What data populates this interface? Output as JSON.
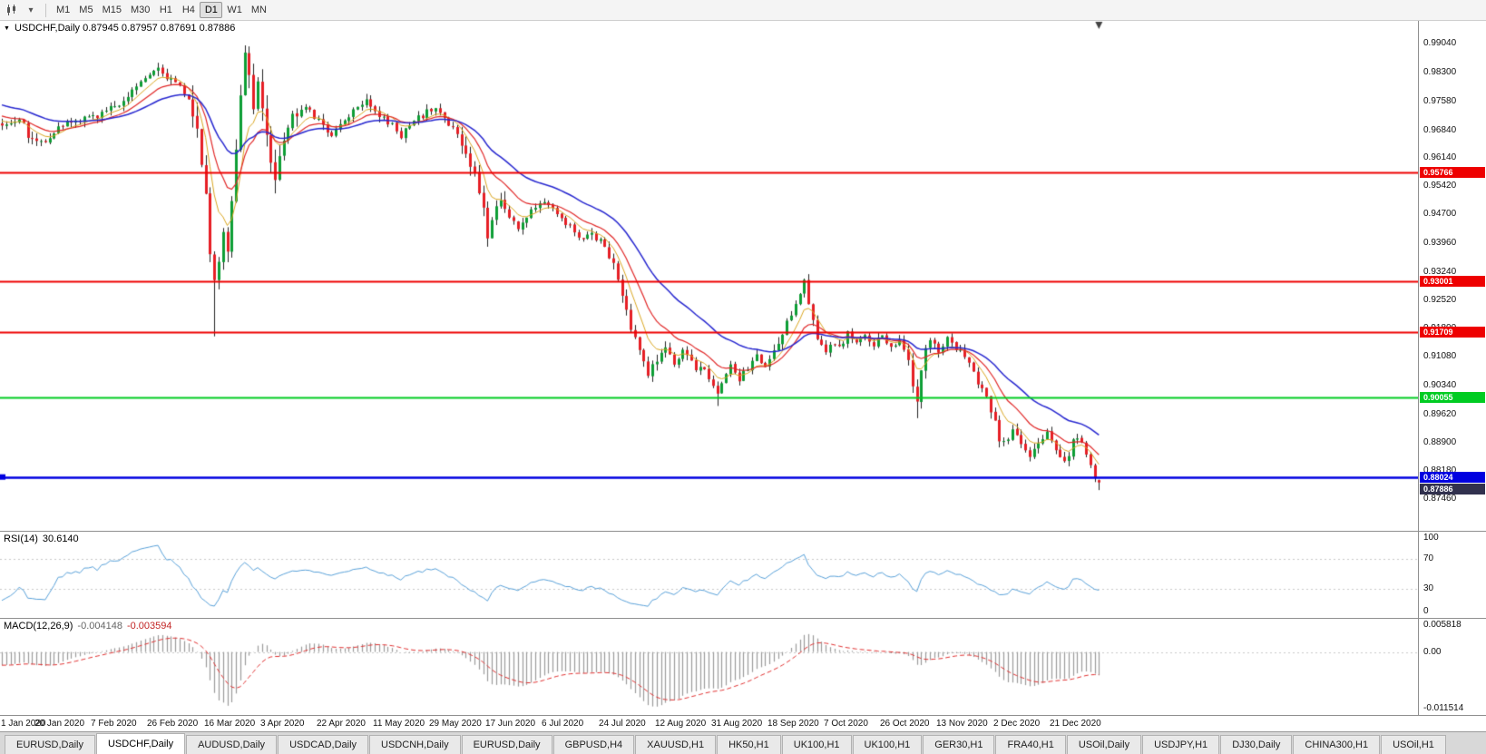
{
  "toolbar": {
    "timeframes": [
      "M1",
      "M5",
      "M15",
      "M30",
      "H1",
      "H4",
      "D1",
      "W1",
      "MN"
    ],
    "active": "D1"
  },
  "chart": {
    "info_line": "USDCHF,Daily  0.87945 0.87957 0.87691 0.87886",
    "symbol": "USDCHF",
    "period": "Daily",
    "open": "0.87945",
    "high": "0.87957",
    "low": "0.87691",
    "close": "0.87886"
  },
  "chart_data": {
    "type": "candlestick",
    "title": "USDCHF Daily 2020",
    "num_candles": 254,
    "days_per_date_label": 13,
    "price_axis_labels": [
      "0.99040",
      "0.98300",
      "0.97580",
      "0.96840",
      "0.96140",
      "0.95420",
      "0.94700",
      "0.93960",
      "0.93240",
      "0.92520",
      "0.91800",
      "0.91080",
      "0.90340",
      "0.89620",
      "0.88900",
      "0.88180",
      "0.87460"
    ],
    "date_labels": [
      "1 Jan 2020",
      "20 Jan 2020",
      "7 Feb 2020",
      "26 Feb 2020",
      "16 Mar 2020",
      "3 Apr 2020",
      "22 Apr 2020",
      "11 May 2020",
      "29 May 2020",
      "17 Jun 2020",
      "6 Jul 2020",
      "24 Jul 2020",
      "12 Aug 2020",
      "31 Aug 2020",
      "18 Sep 2020",
      "7 Oct 2020",
      "26 Oct 2020",
      "13 Nov 2020",
      "2 Dec 2020",
      "21 Dec 2020"
    ],
    "horizontal_lines": [
      {
        "value": 0.95766,
        "label": "0.95766",
        "color": "#ee0000"
      },
      {
        "value": 0.93001,
        "label": "0.93001",
        "color": "#ee0000"
      },
      {
        "value": 0.91709,
        "label": "0.91709",
        "color": "#ee0000"
      },
      {
        "value": 0.90055,
        "label": "0.90055",
        "color": "#00cc22"
      },
      {
        "value": 0.88024,
        "label": "0.88024",
        "color": "#0000e0"
      }
    ],
    "current_price": {
      "label": "0.87886",
      "bg": "#31314e"
    },
    "moving_averages": [
      {
        "period": 7,
        "type": "ema",
        "color": "#d9a51f"
      },
      {
        "period": 14,
        "type": "ema",
        "color": "#e02626"
      },
      {
        "period": 30,
        "type": "ema",
        "color": "#2626cf"
      }
    ],
    "candle_colors": {
      "up": "#0d9e35",
      "down": "#e61e25",
      "wick": "#222222"
    },
    "price_path_anchors": [
      [
        -60,
        0.989
      ],
      [
        -40,
        0.9845
      ],
      [
        -25,
        0.98
      ],
      [
        -12,
        0.9735
      ],
      [
        0,
        0.97
      ],
      [
        4,
        0.9716
      ],
      [
        7,
        0.9655
      ],
      [
        10,
        0.9662
      ],
      [
        13,
        0.969
      ],
      [
        16,
        0.9705
      ],
      [
        20,
        0.9715
      ],
      [
        24,
        0.9732
      ],
      [
        28,
        0.9762
      ],
      [
        31,
        0.98
      ],
      [
        34,
        0.9833
      ],
      [
        36,
        0.9845
      ],
      [
        38,
        0.9822
      ],
      [
        40,
        0.98
      ],
      [
        42,
        0.9782
      ],
      [
        44,
        0.974
      ],
      [
        45,
        0.969
      ],
      [
        46,
        0.961
      ],
      [
        47,
        0.95
      ],
      [
        48,
        0.938
      ],
      [
        49,
        0.93
      ],
      [
        50,
        0.937
      ],
      [
        51,
        0.943
      ],
      [
        52,
        0.939
      ],
      [
        53,
        0.95
      ],
      [
        54,
        0.962
      ],
      [
        55,
        0.975
      ],
      [
        56,
        0.987
      ],
      [
        57,
        0.982
      ],
      [
        58,
        0.976
      ],
      [
        59,
        0.98
      ],
      [
        60,
        0.974
      ],
      [
        61,
        0.968
      ],
      [
        62,
        0.962
      ],
      [
        63,
        0.957
      ],
      [
        64,
        0.961
      ],
      [
        65,
        0.966
      ],
      [
        66,
        0.97
      ],
      [
        68,
        0.973
      ],
      [
        70,
        0.9752
      ],
      [
        72,
        0.9722
      ],
      [
        74,
        0.9692
      ],
      [
        76,
        0.9672
      ],
      [
        78,
        0.97
      ],
      [
        80,
        0.9725
      ],
      [
        82,
        0.975
      ],
      [
        84,
        0.9765
      ],
      [
        86,
        0.9735
      ],
      [
        88,
        0.971
      ],
      [
        90,
        0.9695
      ],
      [
        92,
        0.9672
      ],
      [
        94,
        0.9695
      ],
      [
        96,
        0.9715
      ],
      [
        98,
        0.973
      ],
      [
        100,
        0.974
      ],
      [
        102,
        0.9715
      ],
      [
        104,
        0.969
      ],
      [
        105,
        0.9668
      ],
      [
        106,
        0.9645
      ],
      [
        107,
        0.962
      ],
      [
        108,
        0.9595
      ],
      [
        109,
        0.9565
      ],
      [
        110,
        0.953
      ],
      [
        111,
        0.948
      ],
      [
        112,
        0.942
      ],
      [
        113,
        0.9455
      ],
      [
        114,
        0.949
      ],
      [
        115,
        0.9515
      ],
      [
        116,
        0.949
      ],
      [
        117,
        0.9462
      ],
      [
        119,
        0.9438
      ],
      [
        121,
        0.9462
      ],
      [
        123,
        0.9492
      ],
      [
        125,
        0.951
      ],
      [
        127,
        0.9488
      ],
      [
        129,
        0.9468
      ],
      [
        130,
        0.9448
      ],
      [
        132,
        0.9428
      ],
      [
        134,
        0.9408
      ],
      [
        136,
        0.9422
      ],
      [
        138,
        0.94
      ],
      [
        140,
        0.937
      ],
      [
        141,
        0.934
      ],
      [
        142,
        0.93
      ],
      [
        143,
        0.926
      ],
      [
        144,
        0.922
      ],
      [
        145,
        0.918
      ],
      [
        146,
        0.915
      ],
      [
        147,
        0.912
      ],
      [
        148,
        0.9095
      ],
      [
        149,
        0.907
      ],
      [
        150,
        0.9085
      ],
      [
        151,
        0.91
      ],
      [
        152,
        0.9115
      ],
      [
        153,
        0.913
      ],
      [
        154,
        0.911
      ],
      [
        155,
        0.909
      ],
      [
        156,
        0.9105
      ],
      [
        157,
        0.912
      ],
      [
        158,
        0.9105
      ],
      [
        159,
        0.909
      ],
      [
        160,
        0.9075
      ],
      [
        161,
        0.909
      ],
      [
        162,
        0.9075
      ],
      [
        163,
        0.906
      ],
      [
        164,
        0.904
      ],
      [
        165,
        0.9015
      ],
      [
        166,
        0.9035
      ],
      [
        167,
        0.906
      ],
      [
        168,
        0.908
      ],
      [
        169,
        0.9065
      ],
      [
        170,
        0.905
      ],
      [
        171,
        0.9065
      ],
      [
        172,
        0.908
      ],
      [
        173,
        0.9095
      ],
      [
        174,
        0.911
      ],
      [
        175,
        0.9095
      ],
      [
        176,
        0.908
      ],
      [
        177,
        0.91
      ],
      [
        178,
        0.912
      ],
      [
        180,
        0.916
      ],
      [
        182,
        0.922
      ],
      [
        184,
        0.9275
      ],
      [
        185,
        0.9298
      ],
      [
        186,
        0.925
      ],
      [
        187,
        0.92
      ],
      [
        188,
        0.916
      ],
      [
        189,
        0.913
      ],
      [
        190,
        0.9115
      ],
      [
        191,
        0.913
      ],
      [
        192,
        0.9145
      ],
      [
        193,
        0.913
      ],
      [
        194,
        0.915
      ],
      [
        195,
        0.9165
      ],
      [
        197,
        0.914
      ],
      [
        199,
        0.916
      ],
      [
        201,
        0.914
      ],
      [
        203,
        0.9158
      ],
      [
        205,
        0.9135
      ],
      [
        207,
        0.9152
      ],
      [
        208,
        0.9132
      ],
      [
        209,
        0.9095
      ],
      [
        210,
        0.904
      ],
      [
        211,
        0.8992
      ],
      [
        212,
        0.908
      ],
      [
        213,
        0.914
      ],
      [
        214,
        0.9156
      ],
      [
        215,
        0.9136
      ],
      [
        216,
        0.912
      ],
      [
        217,
        0.9136
      ],
      [
        218,
        0.915
      ],
      [
        219,
        0.9136
      ],
      [
        220,
        0.9122
      ],
      [
        221,
        0.9126
      ],
      [
        222,
        0.9106
      ],
      [
        223,
        0.9086
      ],
      [
        224,
        0.9066
      ],
      [
        225,
        0.9046
      ],
      [
        226,
        0.903
      ],
      [
        227,
        0.9008
      ],
      [
        228,
        0.8978
      ],
      [
        229,
        0.8938
      ],
      [
        230,
        0.8902
      ],
      [
        231,
        0.8888
      ],
      [
        232,
        0.8908
      ],
      [
        233,
        0.8922
      ],
      [
        234,
        0.8908
      ],
      [
        235,
        0.8888
      ],
      [
        236,
        0.8868
      ],
      [
        237,
        0.8852
      ],
      [
        238,
        0.8868
      ],
      [
        239,
        0.8888
      ],
      [
        240,
        0.8902
      ],
      [
        241,
        0.8918
      ],
      [
        242,
        0.8898
      ],
      [
        243,
        0.8872
      ],
      [
        244,
        0.8852
      ],
      [
        245,
        0.8838
      ],
      [
        246,
        0.8862
      ],
      [
        247,
        0.8892
      ],
      [
        248,
        0.8905
      ],
      [
        249,
        0.8885
      ],
      [
        250,
        0.8865
      ],
      [
        251,
        0.884
      ],
      [
        252,
        0.8808
      ],
      [
        253,
        0.8789
      ]
    ],
    "volatility_zones": [
      [
        5,
        9,
        1.3
      ],
      [
        44,
        68,
        2.6
      ],
      [
        105,
        116,
        1.7
      ],
      [
        140,
        153,
        1.3
      ],
      [
        178,
        187,
        1.3
      ],
      [
        209,
        214,
        1.5
      ],
      [
        228,
        233,
        1.3
      ]
    ],
    "overrides": {
      "49": {
        "l": 0.916
      },
      "56": {
        "h": 0.99
      },
      "112": {
        "l": 0.9388
      },
      "165": {
        "l": 0.8983
      },
      "185": {
        "h": 0.9307
      },
      "211": {
        "l": 0.8952
      },
      "253": {
        "o": 0.87945,
        "h": 0.87957,
        "l": 0.87691,
        "c": 0.87886
      }
    }
  },
  "rsi": {
    "label": "RSI(14) 30.6140",
    "name": "RSI(14)",
    "value_text": "30.6140",
    "period": 14,
    "axis_labels": [
      "100",
      "70",
      "30",
      "0"
    ],
    "levels": [
      70,
      30
    ],
    "line_color": "#58a0d8"
  },
  "macd": {
    "name": "MACD(12,26,9)",
    "value_text": "-0.004148",
    "signal_text": "-0.003594",
    "label": "MACD(12,26,9) -0.004148 -0.003594",
    "axis_labels": [
      "0.005818",
      "0.00",
      "-0.011514"
    ],
    "max": 0.005818,
    "min": -0.011514,
    "hist_color": "#9a9a9a",
    "signal_color": "#e03030"
  },
  "tabs": {
    "active_index": 1,
    "items": [
      "EURUSD,Daily",
      "USDCHF,Daily",
      "AUDUSD,Daily",
      "USDCAD,Daily",
      "USDCNH,Daily",
      "EURUSD,Daily",
      "GBPUSD,H4",
      "XAUUSD,H1",
      "HK50,H1",
      "UK100,H1",
      "UK100,H1",
      "GER30,H1",
      "FRA40,H1",
      "USOil,Daily",
      "USDJPY,H1",
      "DJ30,Daily",
      "CHINA300,H1",
      "USOil,H1"
    ]
  }
}
